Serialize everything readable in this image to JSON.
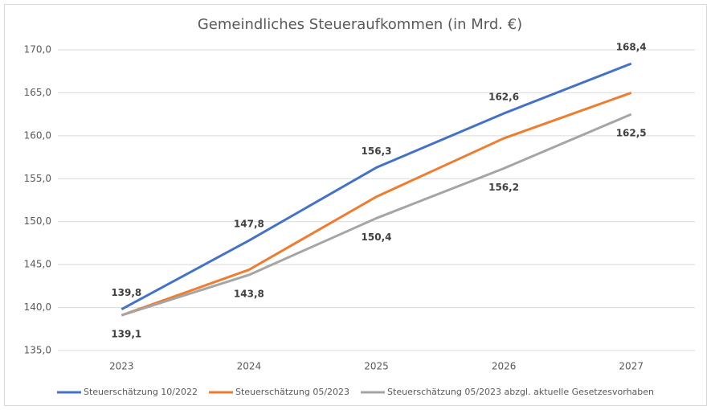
{
  "chart_data": {
    "type": "line",
    "title": "Gemeindliches Steueraufkommen (in Mrd. €)",
    "categories": [
      "2023",
      "2024",
      "2025",
      "2026",
      "2027"
    ],
    "series": [
      {
        "name": "Steuerschätzung 10/2022",
        "color": "#4472c4",
        "values": [
          139.8,
          147.8,
          156.3,
          162.6,
          168.4
        ],
        "value_labels": [
          "139,8",
          "147,8",
          "156,3",
          "162,6",
          "168,4"
        ]
      },
      {
        "name": "Steuerschätzung 05/2023",
        "color": "#ed7d31",
        "values": [
          139.1,
          144.4,
          152.9,
          159.7,
          165.0
        ]
      },
      {
        "name": "Steuerschätzung 05/2023 abzgl. aktuelle Gesetzesvorhaben",
        "color": "#a5a5a5",
        "values": [
          139.1,
          143.8,
          150.4,
          156.2,
          162.5
        ],
        "value_labels": [
          "139,1",
          "143,8",
          "150,4",
          "156,2",
          "162,5"
        ]
      }
    ],
    "ylim": [
      135,
      170
    ],
    "yticks": [
      {
        "value": 135,
        "label": "135,0"
      },
      {
        "value": 140,
        "label": "140,0"
      },
      {
        "value": 145,
        "label": "145,0"
      },
      {
        "value": 150,
        "label": "150,0"
      },
      {
        "value": 155,
        "label": "155,0"
      },
      {
        "value": 160,
        "label": "160,0"
      },
      {
        "value": 165,
        "label": "165,0"
      },
      {
        "value": 170,
        "label": "170,0"
      }
    ],
    "grid": true,
    "legend": "bottom"
  }
}
